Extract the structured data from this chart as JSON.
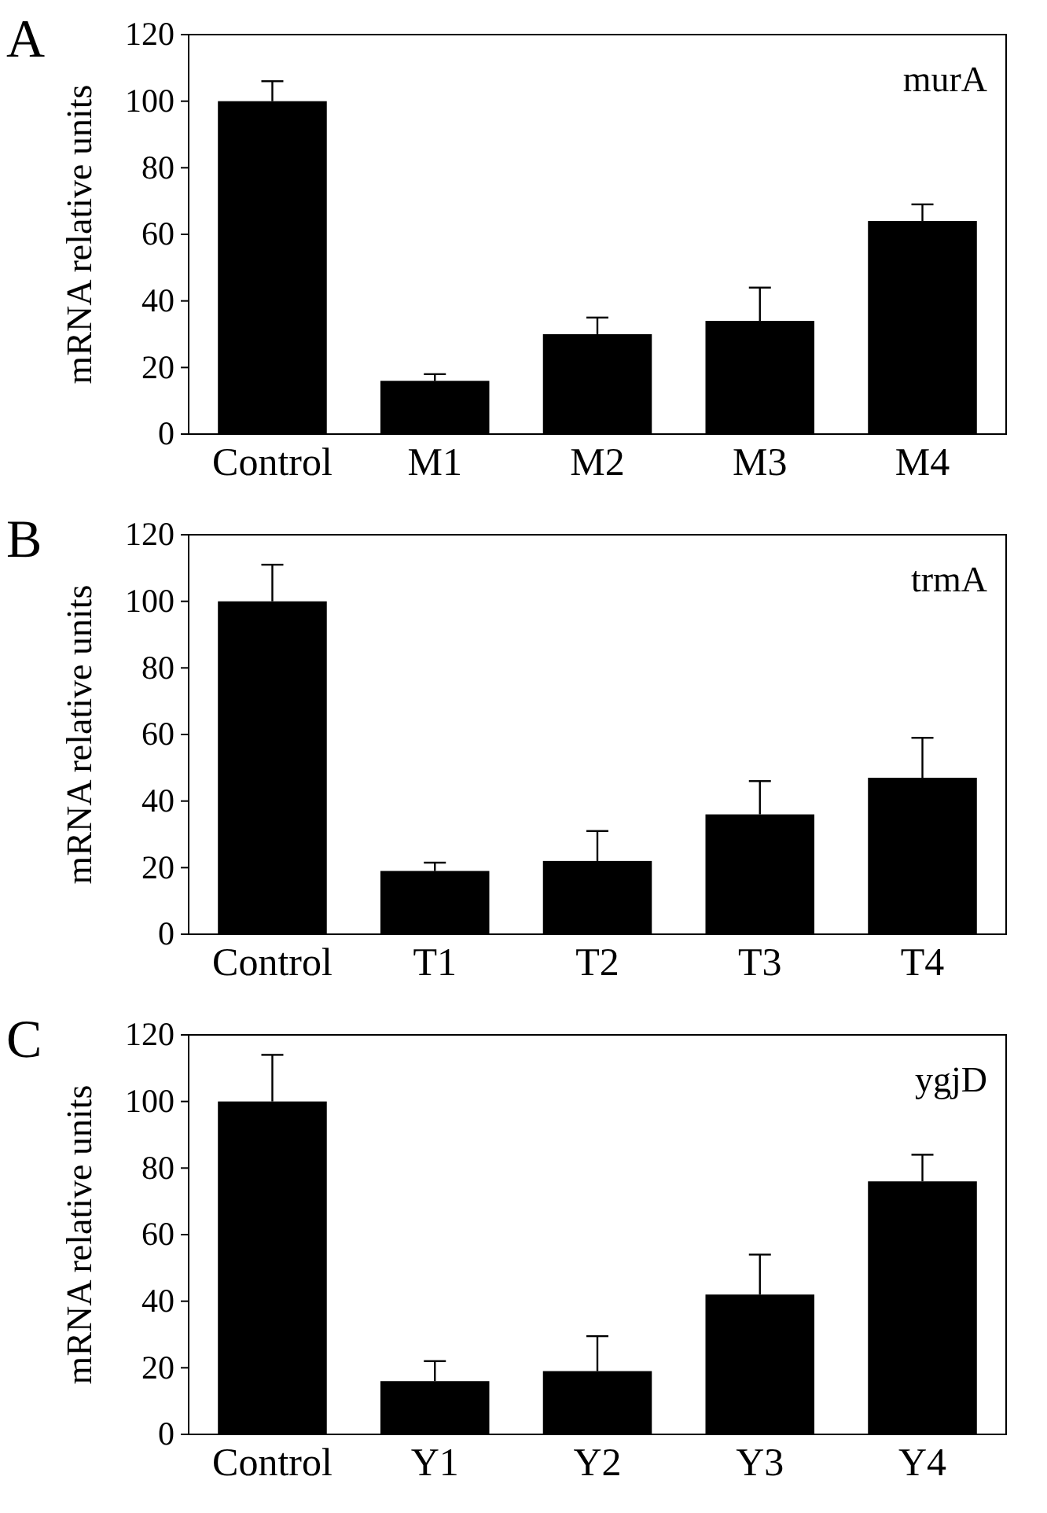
{
  "chart_data": [
    {
      "type": "bar",
      "title": "A",
      "ylabel": "mRNA relative units",
      "annotations": [
        "murA"
      ],
      "categories": [
        "Control",
        "M1",
        "M2",
        "M3",
        "M4"
      ],
      "values": [
        100,
        16,
        30,
        34,
        64
      ],
      "errors": [
        [
          100,
          106
        ],
        [
          16,
          18
        ],
        [
          30,
          35
        ],
        [
          34,
          44
        ],
        [
          64,
          69
        ]
      ],
      "color": "#000000",
      "ylim": [
        0,
        120
      ],
      "yticks": [
        0,
        20,
        40,
        60,
        80,
        100,
        120
      ],
      "grid": false
    },
    {
      "type": "bar",
      "title": "B",
      "ylabel": "mRNA relative units",
      "annotations": [
        "trmA"
      ],
      "categories": [
        "Control",
        "T1",
        "T2",
        "T3",
        "T4"
      ],
      "values": [
        100,
        19,
        22,
        36,
        47
      ],
      "errors": [
        [
          100,
          111
        ],
        [
          19,
          21.5
        ],
        [
          22,
          31
        ],
        [
          36,
          46
        ],
        [
          47,
          59
        ]
      ],
      "color": "#000000",
      "ylim": [
        0,
        120
      ],
      "yticks": [
        0,
        20,
        40,
        60,
        80,
        100,
        120
      ],
      "grid": false
    },
    {
      "type": "bar",
      "title": "C",
      "ylabel": "mRNA relative units",
      "annotations": [
        "ygjD"
      ],
      "categories": [
        "Control",
        "Y1",
        "Y2",
        "Y3",
        "Y4"
      ],
      "values": [
        100,
        16,
        19,
        42,
        76
      ],
      "errors": [
        [
          100,
          114
        ],
        [
          16,
          22
        ],
        [
          19,
          29.5
        ],
        [
          42,
          54
        ],
        [
          76,
          84
        ]
      ],
      "color": "#000000",
      "ylim": [
        0,
        120
      ],
      "yticks": [
        0,
        20,
        40,
        60,
        80,
        100,
        120
      ],
      "grid": false
    }
  ]
}
